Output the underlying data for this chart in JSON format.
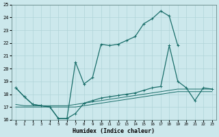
{
  "xlabel": "Humidex (Indice chaleur)",
  "bg_color": "#cce8ec",
  "grid_color": "#b0d4d8",
  "line_color": "#1a6e6a",
  "xlim": [
    -0.5,
    23.5
  ],
  "ylim": [
    16,
    25
  ],
  "xticks": [
    0,
    1,
    2,
    3,
    4,
    5,
    6,
    7,
    8,
    9,
    10,
    11,
    12,
    13,
    14,
    15,
    16,
    17,
    18,
    19,
    20,
    21,
    22,
    23
  ],
  "yticks": [
    16,
    17,
    18,
    19,
    20,
    21,
    22,
    23,
    24,
    25
  ],
  "series1_x": [
    0,
    1,
    2,
    3,
    4,
    5,
    6,
    7,
    8,
    9,
    10,
    11,
    12,
    13,
    14,
    15,
    16,
    17,
    18,
    19,
    20,
    21,
    22,
    23
  ],
  "series1_y": [
    18.5,
    17.8,
    17.2,
    17.1,
    17.0,
    16.1,
    16.1,
    20.5,
    18.8,
    19.3,
    21.9,
    21.8,
    21.9,
    22.2,
    22.5,
    23.5,
    23.9,
    24.5,
    24.1,
    21.8,
    null,
    null,
    null,
    null
  ],
  "series2_x": [
    0,
    1,
    2,
    3,
    4,
    5,
    6,
    7,
    8,
    9,
    10,
    11,
    12,
    13,
    14,
    15,
    16,
    17,
    18,
    19,
    20,
    21,
    22,
    23
  ],
  "series2_y": [
    18.5,
    17.8,
    17.2,
    17.1,
    17.0,
    16.1,
    16.1,
    16.5,
    17.3,
    17.5,
    17.7,
    17.8,
    17.9,
    18.0,
    18.1,
    18.3,
    18.5,
    18.6,
    21.8,
    19.0,
    18.5,
    17.5,
    18.5,
    18.4
  ],
  "series3_x": [
    0,
    1,
    2,
    3,
    4,
    5,
    6,
    7,
    8,
    9,
    10,
    11,
    12,
    13,
    14,
    15,
    16,
    17,
    18,
    19,
    20,
    21,
    22,
    23
  ],
  "series3_y": [
    17.2,
    17.1,
    17.1,
    17.1,
    17.1,
    17.1,
    17.1,
    17.2,
    17.3,
    17.4,
    17.5,
    17.6,
    17.7,
    17.8,
    17.9,
    18.0,
    18.1,
    18.2,
    18.3,
    18.4,
    18.4,
    18.4,
    18.4,
    18.4
  ],
  "series4_x": [
    0,
    1,
    2,
    3,
    4,
    5,
    6,
    7,
    8,
    9,
    10,
    11,
    12,
    13,
    14,
    15,
    16,
    17,
    18,
    19,
    20,
    21,
    22,
    23
  ],
  "series4_y": [
    17.0,
    17.0,
    17.0,
    17.0,
    17.0,
    17.0,
    17.0,
    17.0,
    17.1,
    17.2,
    17.3,
    17.4,
    17.5,
    17.6,
    17.7,
    17.8,
    17.9,
    18.0,
    18.1,
    18.2,
    18.2,
    18.2,
    18.2,
    18.2
  ]
}
